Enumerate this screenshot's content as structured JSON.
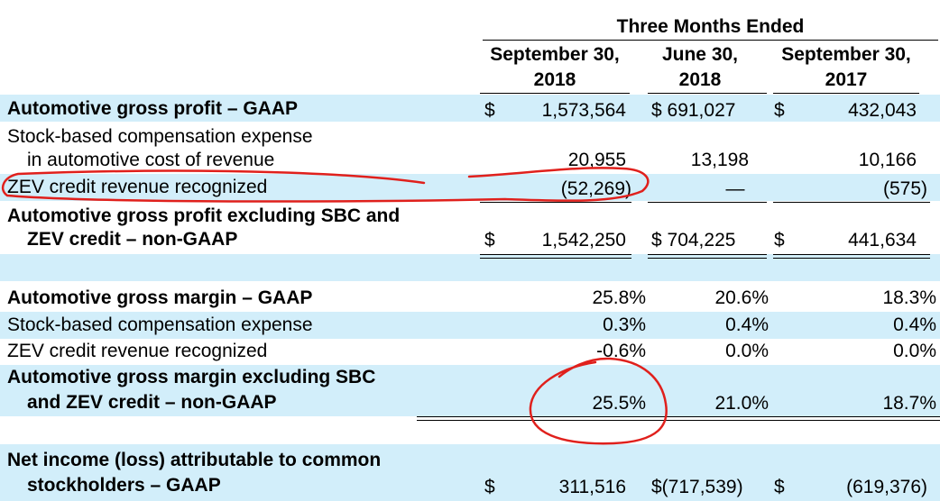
{
  "header": {
    "group": "Three Months Ended",
    "col1": [
      "September 30,",
      "2018"
    ],
    "col2": [
      "June 30,",
      "2018"
    ],
    "col3": [
      "September 30,",
      "2017"
    ]
  },
  "rows": {
    "agp_gaap": {
      "label": "Automotive gross profit – GAAP",
      "cur1": "$",
      "v1": "1,573,564",
      "v2": "$ 691,027",
      "cur3": "$",
      "v3": "432,043"
    },
    "sbc": {
      "label1": "Stock-based compensation expense",
      "label2": "in automotive cost of revenue",
      "v1": "20,955",
      "v2": "13,198",
      "v3": "10,166"
    },
    "zev": {
      "label": "ZEV credit revenue recognized",
      "v1": "(52,269)",
      "v2": "—",
      "v3": "(575)"
    },
    "agp_nongaap": {
      "label1": "Automotive gross profit excluding SBC and",
      "label2": "ZEV credit – non-GAAP",
      "cur1": "$",
      "v1": "1,542,250",
      "v2": "$ 704,225",
      "cur3": "$",
      "v3": "441,634"
    },
    "agm_gaap": {
      "label": "Automotive gross margin – GAAP",
      "v1": "25.8%",
      "v2": "20.6%",
      "v3": "18.3%"
    },
    "sbc_m": {
      "label": "Stock-based compensation expense",
      "v1": "0.3%",
      "v2": "0.4%",
      "v3": "0.4%"
    },
    "zev_m": {
      "label": "ZEV credit revenue recognized",
      "v1": "-0.6%",
      "v2": "0.0%",
      "v3": "0.0%"
    },
    "agm_nongaap": {
      "label1": "Automotive gross margin excluding SBC",
      "label2": "and ZEV credit – non-GAAP",
      "v1": "25.5%",
      "v2": "21.0%",
      "v3": "18.7%"
    },
    "ni": {
      "label1": "Net income (loss) attributable to common",
      "label2": "stockholders – GAAP",
      "cur1": "$",
      "v1": "311,516",
      "v2": "$(717,539)",
      "cur3": "$",
      "v3": "(619,376)"
    }
  },
  "colors": {
    "band": "#d2eefa",
    "annotation": "#e0201c"
  }
}
